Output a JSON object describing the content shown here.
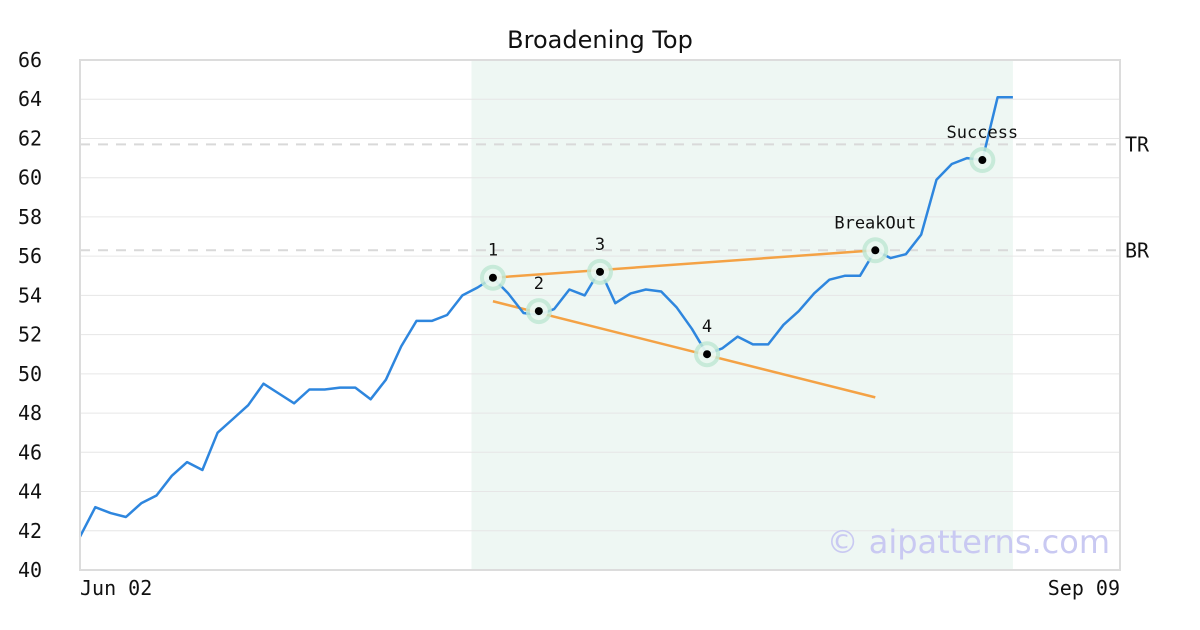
{
  "chart_data": {
    "type": "line",
    "title": "Broadening Top",
    "watermark": "© aipatterns.com",
    "ylim": [
      40,
      66
    ],
    "yticks": [
      40,
      42,
      44,
      46,
      48,
      50,
      52,
      54,
      56,
      58,
      60,
      62,
      64,
      66
    ],
    "x_range": [
      0,
      68
    ],
    "x_tick_labels": [
      {
        "x": 0,
        "label": "Jun 02"
      },
      {
        "x": 68,
        "label": "Sep 09"
      }
    ],
    "grid": true,
    "pattern_region": {
      "x_start": 25.6,
      "x_end": 61
    },
    "levels": [
      {
        "name": "TR",
        "value": 61.7
      },
      {
        "name": "BR",
        "value": 56.3
      }
    ],
    "series": [
      {
        "color": "#2e86de",
        "x": [
          0,
          1,
          2,
          3,
          4,
          5,
          6,
          7,
          8,
          9,
          10,
          11,
          12,
          13,
          14,
          15,
          16,
          17,
          18,
          19,
          20,
          21,
          22,
          23,
          24,
          25,
          26,
          27,
          28,
          29,
          30,
          31,
          32,
          33,
          34,
          35,
          36,
          37,
          38,
          39,
          40,
          41,
          42,
          43,
          44,
          45,
          46,
          47,
          48,
          49,
          50,
          51,
          52,
          53,
          54,
          55,
          56,
          57,
          58,
          59,
          60,
          61
        ],
        "y": [
          41.7,
          43.2,
          42.9,
          42.7,
          43.4,
          43.8,
          44.8,
          45.5,
          45.1,
          47.0,
          47.7,
          48.4,
          49.5,
          49.0,
          48.5,
          49.2,
          49.2,
          49.3,
          49.3,
          48.7,
          49.7,
          51.4,
          52.7,
          52.7,
          53.0,
          54.0,
          54.4,
          54.9,
          54.1,
          53.1,
          53.0,
          53.3,
          54.3,
          54.0,
          55.3,
          53.6,
          54.1,
          54.3,
          54.2,
          53.4,
          52.3,
          51.0,
          51.3,
          51.9,
          51.5,
          51.5,
          52.5,
          53.2,
          54.1,
          54.8,
          55.0,
          55.0,
          56.3,
          55.9,
          56.1,
          57.1,
          59.9,
          60.7,
          61.0,
          60.9,
          64.1,
          64.1
        ]
      }
    ],
    "trendlines": [
      {
        "color": "#f4a245",
        "points": [
          [
            27,
            54.9
          ],
          [
            52,
            56.3
          ]
        ]
      },
      {
        "color": "#f4a245",
        "points": [
          [
            27,
            53.7
          ],
          [
            52,
            48.8
          ]
        ]
      }
    ],
    "markers": [
      {
        "label": "1",
        "x": 27,
        "y": 54.9,
        "label_position": "above"
      },
      {
        "label": "2",
        "x": 30,
        "y": 53.2,
        "label_position": "above"
      },
      {
        "label": "3",
        "x": 34,
        "y": 55.2,
        "label_position": "above"
      },
      {
        "label": "4",
        "x": 41,
        "y": 51.0,
        "label_position": "above"
      },
      {
        "label": "BreakOut",
        "x": 52,
        "y": 56.3,
        "label_position": "above"
      },
      {
        "label": "Success",
        "x": 59,
        "y": 60.9,
        "label_position": "above"
      }
    ]
  }
}
